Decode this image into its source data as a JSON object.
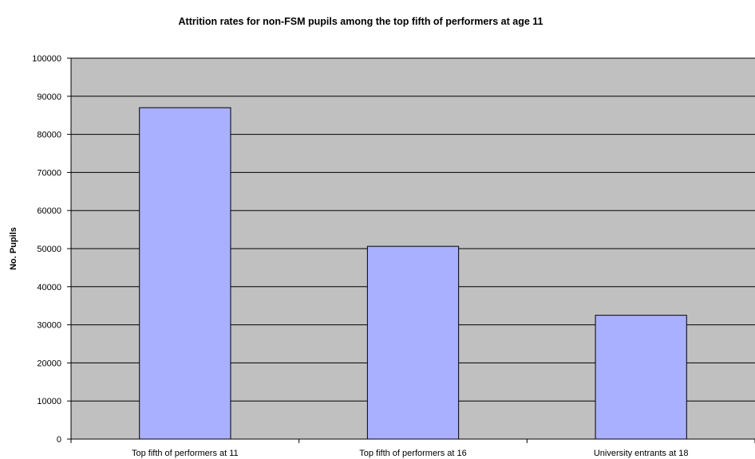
{
  "chart_data": {
    "type": "bar",
    "title": "Attrition rates for non-FSM pupils among the top fifth of performers at age 11",
    "xlabel": "",
    "ylabel": "No. Pupils",
    "categories": [
      "Top fifth of performers at 11",
      "Top fifth of performers at 16",
      "University entrants at 18"
    ],
    "values": [
      87000,
      50600,
      32500
    ],
    "ylim": [
      0,
      100000
    ],
    "y_ticks": [
      "0",
      "10000",
      "20000",
      "30000",
      "40000",
      "50000",
      "60000",
      "70000",
      "80000",
      "90000",
      "100000"
    ],
    "grid": true,
    "legend": "none",
    "colors": {
      "plot_background": "#c0c0c0",
      "bar_fill": "#a9b0ff",
      "bar_stroke": "#000000",
      "gridline": "#000000"
    }
  }
}
